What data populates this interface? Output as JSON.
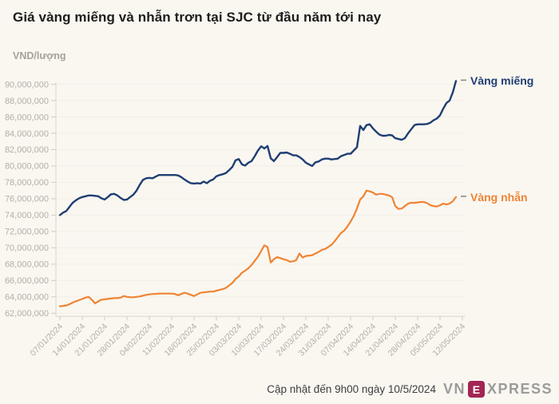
{
  "title": "Giá vàng miếng và nhẫn trơn tại SJC từ đầu năm tới nay",
  "unit_label": "VND/lượng",
  "footer": {
    "caption": "Cập nhật đến 9h00 ngày 10/5/2024",
    "logo": {
      "prefix": "VN",
      "e": "E",
      "suffix": "XPRESS",
      "box_color": "#a22553",
      "text_color": "#9b9b9b"
    }
  },
  "colors": {
    "background": "#faf7f1",
    "axis_line": "#d9d5cb",
    "tick_mark": "#cfcbc1",
    "gridline": "#f2efe7",
    "tick_text": "#b3afa6",
    "legend_dash": "#8f8b84",
    "title_text": "#1d1d1d",
    "caption_text": "#3d3d3d"
  },
  "chart_data": {
    "type": "line",
    "title": "Giá vàng miếng và nhẫn trơn tại SJC từ đầu năm tới nay",
    "ylabel": "VND/lượng",
    "ylim": [
      62000000,
      90000000
    ],
    "y_tick_step": 2000000,
    "frequency": "daily",
    "date_start": "07/01/2024",
    "date_end": "10/05/2024",
    "x_tick_labels": [
      "07/01/2024",
      "14/01/2024",
      "21/01/2024",
      "28/01/2024",
      "04/02/2024",
      "11/02/2024",
      "18/02/2024",
      "25/02/2024",
      "03/03/2024",
      "10/03/2024",
      "17/03/2024",
      "24/03/2024",
      "31/03/2024",
      "07/04/2024",
      "14/04/2024",
      "21/04/2024",
      "28/04/2024",
      "05/05/2024",
      "12/05/2024"
    ],
    "x_points_per_tick": 7,
    "legend_position": "end-of-line",
    "grid": "faint-horizontal",
    "series": [
      {
        "name": "Vàng miếng",
        "color": "#1f3e73",
        "values_million_vnd": [
          74.0,
          74.3,
          74.5,
          75.0,
          75.5,
          75.8,
          76.05,
          76.2,
          76.3,
          76.4,
          76.4,
          76.35,
          76.3,
          76.05,
          75.9,
          76.2,
          76.55,
          76.6,
          76.4,
          76.1,
          75.85,
          75.9,
          76.2,
          76.5,
          77.0,
          77.7,
          78.3,
          78.5,
          78.55,
          78.5,
          78.7,
          78.9,
          78.9,
          78.9,
          78.9,
          78.9,
          78.9,
          78.85,
          78.65,
          78.35,
          78.1,
          77.9,
          77.85,
          77.9,
          77.85,
          78.1,
          77.9,
          78.2,
          78.35,
          78.75,
          78.9,
          79.0,
          79.15,
          79.5,
          79.9,
          80.7,
          80.85,
          80.2,
          80.05,
          80.4,
          80.6,
          81.2,
          81.9,
          82.4,
          82.15,
          82.45,
          80.95,
          80.6,
          81.1,
          81.6,
          81.6,
          81.65,
          81.5,
          81.3,
          81.3,
          81.1,
          80.8,
          80.4,
          80.2,
          80.0,
          80.45,
          80.55,
          80.8,
          80.9,
          80.9,
          80.8,
          80.85,
          80.9,
          81.2,
          81.35,
          81.5,
          81.5,
          81.9,
          82.3,
          84.9,
          84.4,
          85.0,
          85.1,
          84.6,
          84.2,
          83.85,
          83.7,
          83.7,
          83.8,
          83.75,
          83.4,
          83.3,
          83.2,
          83.4,
          84.0,
          84.5,
          85.0,
          85.1,
          85.1,
          85.1,
          85.15,
          85.3,
          85.6,
          85.8,
          86.2,
          87.0,
          87.7,
          88.0,
          89.0,
          90.4
        ]
      },
      {
        "name": "Vàng nhẫn",
        "color": "#ef8432",
        "values_million_vnd": [
          62.85,
          62.9,
          62.95,
          63.1,
          63.3,
          63.45,
          63.6,
          63.75,
          63.9,
          64.0,
          63.65,
          63.2,
          63.45,
          63.65,
          63.7,
          63.75,
          63.8,
          63.85,
          63.85,
          63.9,
          64.1,
          64.0,
          63.95,
          63.95,
          64.0,
          64.05,
          64.15,
          64.25,
          64.3,
          64.35,
          64.35,
          64.4,
          64.4,
          64.4,
          64.4,
          64.4,
          64.35,
          64.2,
          64.35,
          64.5,
          64.4,
          64.25,
          64.1,
          64.3,
          64.5,
          64.55,
          64.6,
          64.65,
          64.65,
          64.75,
          64.85,
          64.95,
          65.1,
          65.4,
          65.7,
          66.2,
          66.5,
          66.95,
          67.2,
          67.5,
          67.9,
          68.4,
          68.9,
          69.6,
          70.3,
          70.1,
          68.2,
          68.6,
          68.85,
          68.75,
          68.6,
          68.5,
          68.3,
          68.35,
          68.5,
          69.3,
          68.8,
          69.0,
          69.05,
          69.1,
          69.3,
          69.5,
          69.75,
          69.85,
          70.1,
          70.35,
          70.8,
          71.3,
          71.8,
          72.1,
          72.6,
          73.2,
          73.9,
          74.8,
          75.9,
          76.3,
          77.0,
          76.9,
          76.75,
          76.5,
          76.6,
          76.6,
          76.5,
          76.4,
          76.2,
          75.1,
          74.75,
          74.8,
          75.1,
          75.4,
          75.5,
          75.5,
          75.55,
          75.6,
          75.6,
          75.45,
          75.2,
          75.1,
          75.05,
          75.2,
          75.4,
          75.3,
          75.4,
          75.7,
          76.2
        ]
      }
    ]
  }
}
